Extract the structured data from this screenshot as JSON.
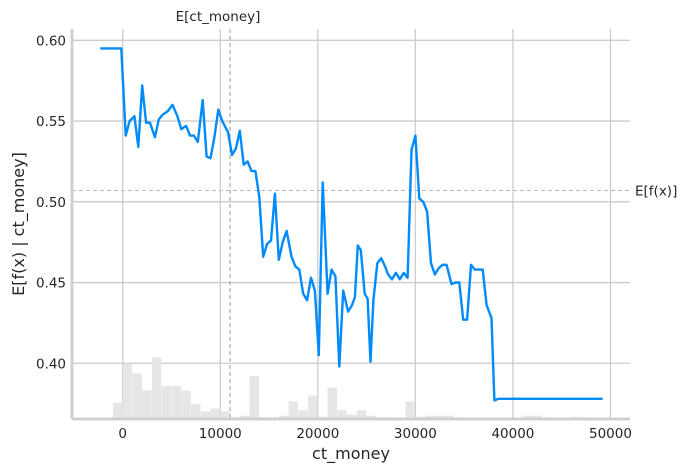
{
  "chart_data": {
    "type": "line",
    "xlabel": "ct_money",
    "ylabel": "E[f(x) | ct_money]",
    "xlim": [
      -5200,
      52000
    ],
    "ylim": [
      0.3655,
      0.607
    ],
    "x_ticks": [
      0,
      10000,
      20000,
      30000,
      40000,
      50000
    ],
    "x_tick_labels": [
      "0",
      "10000",
      "20000",
      "30000",
      "40000",
      "50000"
    ],
    "y_ticks": [
      0.4,
      0.45,
      0.5,
      0.55,
      0.6
    ],
    "y_tick_labels": [
      "0.40",
      "0.45",
      "0.50",
      "0.55",
      "0.60"
    ],
    "grid": true,
    "line_color": "#008bfb",
    "expected_x": {
      "label": "E[ct_money]",
      "value": 11000
    },
    "expected_y": {
      "label": "E[f(x)]",
      "value": 0.507
    },
    "series": [
      {
        "x": [
          -2300,
          -1400,
          -500,
          -150,
          300,
          700,
          1200,
          1600,
          2000,
          2400,
          2800,
          3300,
          3700,
          4100,
          4600,
          5100,
          5600,
          6000,
          6500,
          6900,
          7300,
          7700,
          8200,
          8600,
          9000,
          9400,
          9800,
          10200,
          10800,
          11200,
          11600,
          12000,
          12400,
          12800,
          13200,
          13600,
          14000,
          14400,
          14800,
          15200,
          15600,
          16000,
          16400,
          16800,
          17300,
          17700,
          18100,
          18500,
          18900,
          19300,
          19700,
          20100,
          20500,
          21000,
          21400,
          21800,
          22200,
          22600,
          23100,
          23500,
          23800,
          24100,
          24400,
          24800,
          25100,
          25400,
          25700,
          26100,
          26500,
          26900,
          27200,
          27600,
          28000,
          28400,
          28800,
          29200,
          29600,
          30000,
          30400,
          30800,
          31200,
          31600,
          32000,
          32400,
          32800,
          33200,
          33700,
          34100,
          34500,
          34900,
          35300,
          35700,
          36100,
          36500,
          36900,
          37300,
          37800,
          38100,
          38500,
          39000,
          39400,
          39800,
          40200,
          40700,
          41200,
          41600,
          42100,
          42600,
          43000,
          43400,
          43900,
          44300,
          44700,
          45200,
          45700,
          46200,
          46700,
          47200,
          47700,
          48200,
          48700,
          49200
        ],
        "y": [
          0.595,
          0.595,
          0.595,
          0.595,
          0.541,
          0.55,
          0.553,
          0.534,
          0.572,
          0.549,
          0.549,
          0.54,
          0.551,
          0.554,
          0.556,
          0.56,
          0.553,
          0.545,
          0.547,
          0.541,
          0.541,
          0.537,
          0.563,
          0.528,
          0.527,
          0.54,
          0.557,
          0.55,
          0.543,
          0.529,
          0.533,
          0.544,
          0.523,
          0.525,
          0.519,
          0.519,
          0.503,
          0.466,
          0.474,
          0.476,
          0.505,
          0.464,
          0.475,
          0.482,
          0.466,
          0.46,
          0.458,
          0.443,
          0.439,
          0.453,
          0.445,
          0.405,
          0.512,
          0.443,
          0.458,
          0.454,
          0.398,
          0.445,
          0.432,
          0.436,
          0.441,
          0.473,
          0.47,
          0.443,
          0.44,
          0.401,
          0.439,
          0.462,
          0.465,
          0.46,
          0.455,
          0.452,
          0.456,
          0.452,
          0.456,
          0.453,
          0.532,
          0.541,
          0.502,
          0.5,
          0.494,
          0.462,
          0.455,
          0.459,
          0.461,
          0.461,
          0.449,
          0.45,
          0.45,
          0.427,
          0.427,
          0.461,
          0.458,
          0.458,
          0.458,
          0.436,
          0.428,
          0.377,
          0.378,
          0.378,
          0.378,
          0.378,
          0.378,
          0.378,
          0.378,
          0.378,
          0.378,
          0.378,
          0.378,
          0.378,
          0.378,
          0.378,
          0.378,
          0.378,
          0.378,
          0.378,
          0.378,
          0.378,
          0.378,
          0.378,
          0.378,
          0.378
        ]
      }
    ],
    "histogram": {
      "bin_width": 1000,
      "bins": [
        [
          -1000,
          0.3
        ],
        [
          0,
          1.0
        ],
        [
          1000,
          0.83
        ],
        [
          2000,
          0.52
        ],
        [
          3000,
          1.12
        ],
        [
          4000,
          0.6
        ],
        [
          5000,
          0.6
        ],
        [
          6000,
          0.52
        ],
        [
          7000,
          0.27
        ],
        [
          8000,
          0.14
        ],
        [
          9000,
          0.19
        ],
        [
          10000,
          0.14
        ],
        [
          11000,
          0.03
        ],
        [
          12000,
          0.06
        ],
        [
          13000,
          0.78
        ],
        [
          14000,
          0.03
        ],
        [
          15000,
          0.03
        ],
        [
          16000,
          0.06
        ],
        [
          17000,
          0.32
        ],
        [
          18000,
          0.16
        ],
        [
          19000,
          0.43
        ],
        [
          20000,
          0.04
        ],
        [
          21000,
          0.57
        ],
        [
          22000,
          0.16
        ],
        [
          23000,
          0.08
        ],
        [
          24000,
          0.16
        ],
        [
          25000,
          0.06
        ],
        [
          26000,
          0.03
        ],
        [
          27000,
          0.03
        ],
        [
          28000,
          0.02
        ],
        [
          29000,
          0.32
        ],
        [
          30000,
          0.04
        ],
        [
          31000,
          0.06
        ],
        [
          32000,
          0.06
        ],
        [
          33000,
          0.06
        ],
        [
          34000,
          0.03
        ],
        [
          41000,
          0.06
        ],
        [
          42000,
          0.06
        ],
        [
          43000,
          0.03
        ],
        [
          44000,
          0.02
        ],
        [
          46000,
          0.04
        ],
        [
          47000,
          0.03
        ],
        [
          48000,
          0.02
        ]
      ]
    }
  }
}
